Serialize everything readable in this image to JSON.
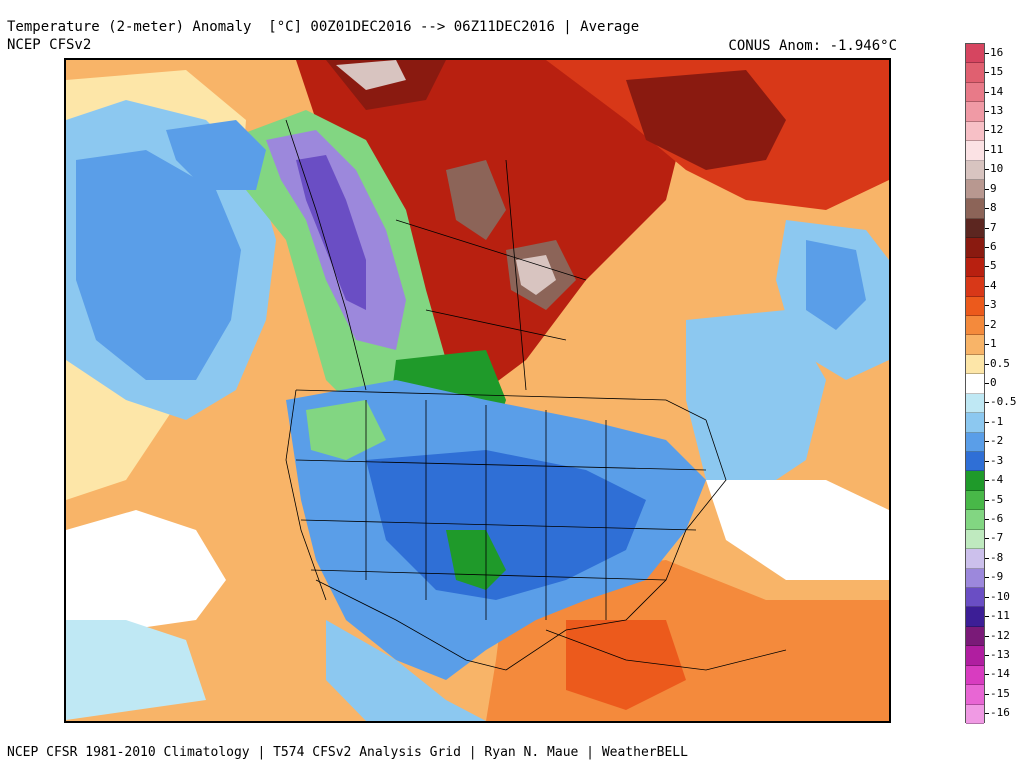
{
  "header": {
    "title": "Temperature (2-meter) Anomaly  [°C] 00Z01DEC2016 --> 06Z11DEC2016 | Average",
    "source": "NCEP CFSv2",
    "conus_anom": "CONUS Anom: -1.946°C"
  },
  "footer": {
    "credits": "NCEP CFSR 1981-2010 Climatology | T574 CFSv2 Analysis Grid | Ryan N. Maue | WeatherBELL"
  },
  "legend": {
    "unit": "°C",
    "items": [
      {
        "label": "16",
        "color": "#d64560"
      },
      {
        "label": "15",
        "color": "#e06070"
      },
      {
        "label": "14",
        "color": "#e87a88"
      },
      {
        "label": "13",
        "color": "#f09aa5"
      },
      {
        "label": "12",
        "color": "#f7c0c6"
      },
      {
        "label": "11",
        "color": "#fbe2e4"
      },
      {
        "label": "10",
        "color": "#d8c4c0"
      },
      {
        "label": "9",
        "color": "#b89890"
      },
      {
        "label": "8",
        "color": "#8c6458"
      },
      {
        "label": "7",
        "color": "#5c2620"
      },
      {
        "label": "6",
        "color": "#8a1a10"
      },
      {
        "label": "5",
        "color": "#b82010"
      },
      {
        "label": "4",
        "color": "#d83818"
      },
      {
        "label": "3",
        "color": "#ec5a1c"
      },
      {
        "label": "2",
        "color": "#f48a3c"
      },
      {
        "label": "1",
        "color": "#f8b468"
      },
      {
        "label": "0.5",
        "color": "#fde6a8"
      },
      {
        "label": "0",
        "color": "#ffffff"
      },
      {
        "label": "-0.5",
        "color": "#bfe8f4"
      },
      {
        "label": "-1",
        "color": "#8cc8f0"
      },
      {
        "label": "-2",
        "color": "#5a9ee8"
      },
      {
        "label": "-3",
        "color": "#2f6fd6"
      },
      {
        "label": "-4",
        "color": "#1f9a2a"
      },
      {
        "label": "-5",
        "color": "#48b848"
      },
      {
        "label": "-6",
        "color": "#82d682"
      },
      {
        "label": "-7",
        "color": "#bfeabf"
      },
      {
        "label": "-8",
        "color": "#ccc0ec"
      },
      {
        "label": "-9",
        "color": "#9c88dc"
      },
      {
        "label": "-10",
        "color": "#6a4ec4"
      },
      {
        "label": "-11",
        "color": "#3c1e96"
      },
      {
        "label": "-12",
        "color": "#7a1a78"
      },
      {
        "label": "-13",
        "color": "#b01ea0"
      },
      {
        "label": "-14",
        "color": "#d83cc0"
      },
      {
        "label": "-15",
        "color": "#e866d4"
      },
      {
        "label": "-16",
        "color": "#f09ae4"
      }
    ]
  },
  "map": {
    "region": "North America",
    "palette": {
      "warm_bg": "#f48a3c",
      "deep_red": "#b82010",
      "brown": "#8c6458",
      "pale_brown": "#d8c4c0",
      "light_blue": "#bfe8f4",
      "mid_blue": "#8cc8f0",
      "blue": "#5a9ee8",
      "strong_blue": "#2f6fd6",
      "green": "#1f9a2a",
      "light_green": "#82d682",
      "lavender": "#9c88dc",
      "purple": "#6a4ec4",
      "pale_orange": "#f8b468",
      "cream": "#fde6a8"
    }
  }
}
